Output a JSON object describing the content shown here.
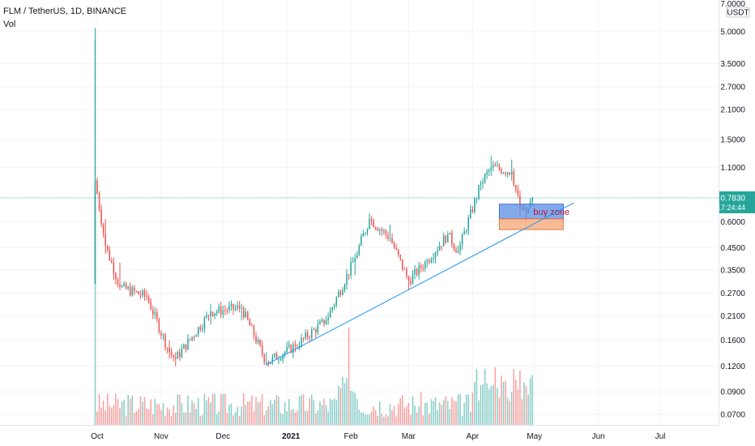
{
  "header": {
    "symbol_line": "FLM / TetherUS, 1D, BINANCE",
    "vol_label": "Vol"
  },
  "price_axis": {
    "currency": "USDT",
    "top_partial": "7.0000",
    "ticks": [
      "5.0000",
      "3.5000",
      "2.7000",
      "2.1000",
      "1.5000",
      "1.1000",
      "0.6000",
      "0.4500",
      "0.3500",
      "0.2700",
      "0.2100",
      "0.1600",
      "0.1200",
      "0.0900",
      "0.0700"
    ],
    "current_price": "0.7830",
    "countdown": "17:24:44"
  },
  "time_axis": [
    "Oct",
    "Nov",
    "Dec",
    "2021",
    "Feb",
    "Mar",
    "Apr",
    "May",
    "Jun",
    "Jul"
  ],
  "colors": {
    "up": "#26a69a",
    "down": "#ef5350",
    "trendline": "#2196f3",
    "zone_blue": "#5b8ee6",
    "zone_orange": "#f5a673",
    "zone_text": "#b2163b"
  },
  "chart_data": {
    "type": "candlestick",
    "title": "FLM / TetherUS, 1D, BINANCE",
    "scale": "log",
    "ylim": [
      0.064,
      7.0
    ],
    "x_range": [
      "2020-09-26",
      "2021-07-25"
    ],
    "current_price": 0.783,
    "annotations": [
      {
        "type": "rectangle",
        "label": "buy zone",
        "x": [
          "2021-04-14",
          "2021-05-15"
        ],
        "y": [
          0.62,
          0.73
        ],
        "color": "blue"
      },
      {
        "type": "rectangle",
        "label": "",
        "x": [
          "2021-04-14",
          "2021-05-15"
        ],
        "y": [
          0.55,
          0.62
        ],
        "color": "orange"
      },
      {
        "type": "trendline",
        "from": {
          "x": "2020-12-22",
          "y": 0.122
        },
        "to": {
          "x": "2021-05-20",
          "y": 0.74
        }
      }
    ],
    "price_anchors": [
      {
        "date": "2020-09-30",
        "open": 0.3,
        "high": 5.2,
        "low": 0.3,
        "close": 0.95
      },
      {
        "date": "2020-10-05",
        "open": 0.6,
        "high": 0.62,
        "low": 0.42,
        "close": 0.46
      },
      {
        "date": "2020-10-12",
        "open": 0.36,
        "high": 0.38,
        "low": 0.28,
        "close": 0.29
      },
      {
        "date": "2020-10-25",
        "open": 0.27,
        "high": 0.28,
        "low": 0.25,
        "close": 0.26
      },
      {
        "date": "2020-11-05",
        "open": 0.15,
        "high": 0.16,
        "low": 0.13,
        "close": 0.14
      },
      {
        "date": "2020-11-08",
        "open": 0.13,
        "high": 0.14,
        "low": 0.12,
        "close": 0.13
      },
      {
        "date": "2020-11-25",
        "open": 0.2,
        "high": 0.24,
        "low": 0.19,
        "close": 0.22
      },
      {
        "date": "2020-12-10",
        "open": 0.22,
        "high": 0.24,
        "low": 0.2,
        "close": 0.23
      },
      {
        "date": "2020-12-22",
        "open": 0.13,
        "high": 0.14,
        "low": 0.12,
        "close": 0.125
      },
      {
        "date": "2021-01-05",
        "open": 0.15,
        "high": 0.16,
        "low": 0.14,
        "close": 0.15
      },
      {
        "date": "2021-01-20",
        "open": 0.2,
        "high": 0.21,
        "low": 0.19,
        "close": 0.2
      },
      {
        "date": "2021-02-03",
        "open": 0.34,
        "high": 0.42,
        "low": 0.33,
        "close": 0.4
      },
      {
        "date": "2021-02-10",
        "open": 0.58,
        "high": 0.66,
        "low": 0.55,
        "close": 0.62
      },
      {
        "date": "2021-02-20",
        "open": 0.55,
        "high": 0.58,
        "low": 0.48,
        "close": 0.5
      },
      {
        "date": "2021-03-01",
        "open": 0.3,
        "high": 0.33,
        "low": 0.28,
        "close": 0.31
      },
      {
        "date": "2021-03-10",
        "open": 0.37,
        "high": 0.4,
        "low": 0.36,
        "close": 0.39
      },
      {
        "date": "2021-03-20",
        "open": 0.5,
        "high": 0.54,
        "low": 0.48,
        "close": 0.52
      },
      {
        "date": "2021-03-25",
        "open": 0.44,
        "high": 0.46,
        "low": 0.42,
        "close": 0.43
      },
      {
        "date": "2021-04-05",
        "open": 0.9,
        "high": 0.95,
        "low": 0.85,
        "close": 0.92
      },
      {
        "date": "2021-04-10",
        "open": 1.05,
        "high": 1.25,
        "low": 1.0,
        "close": 1.1
      },
      {
        "date": "2021-04-20",
        "open": 1.0,
        "high": 1.2,
        "low": 0.95,
        "close": 1.05
      },
      {
        "date": "2021-04-24",
        "open": 0.8,
        "high": 0.85,
        "low": 0.65,
        "close": 0.7
      },
      {
        "date": "2021-04-27",
        "open": 0.64,
        "high": 0.7,
        "low": 0.6,
        "close": 0.66
      },
      {
        "date": "2021-04-30",
        "open": 0.74,
        "high": 0.79,
        "low": 0.72,
        "close": 0.783
      }
    ]
  }
}
